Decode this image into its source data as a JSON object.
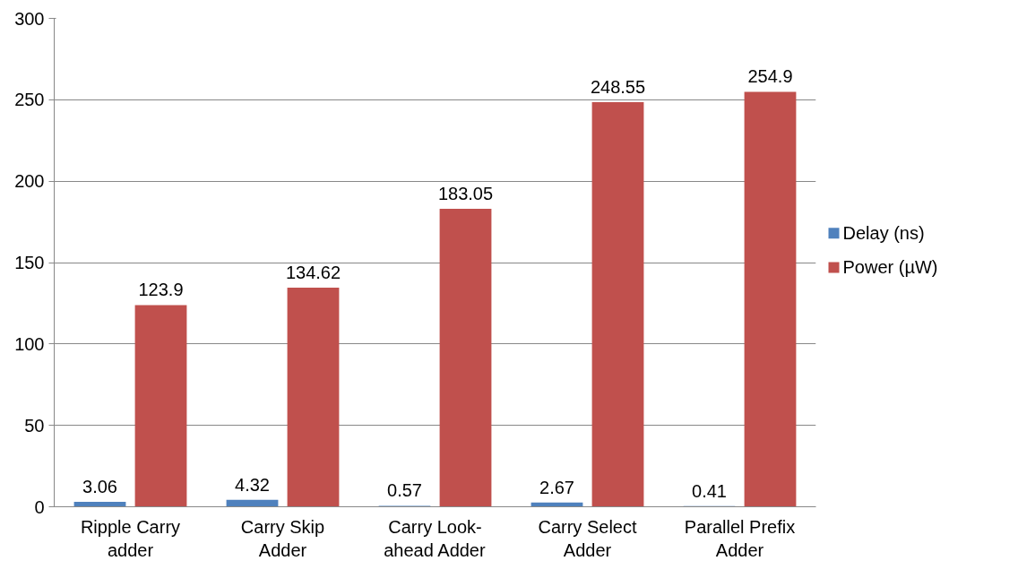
{
  "chart_data": {
    "type": "bar",
    "categories": [
      "Ripple Carry\nadder",
      "Carry Skip\nAdder",
      "Carry Look-\nahead Adder",
      "Carry Select\nAdder",
      "Parallel Prefix\nAdder"
    ],
    "series": [
      {
        "name": "Delay (ns)",
        "color": "#4f81bd",
        "values": [
          3.06,
          4.32,
          0.57,
          2.67,
          0.41
        ]
      },
      {
        "name": "Power (µW)",
        "color": "#c0504d",
        "values": [
          123.9,
          134.62,
          183.05,
          248.55,
          254.9
        ]
      }
    ],
    "ylim": [
      0,
      300
    ],
    "yticks": [
      0,
      50,
      100,
      150,
      200,
      250,
      300
    ],
    "grid": "y",
    "legend": "right",
    "data_labels": true
  }
}
